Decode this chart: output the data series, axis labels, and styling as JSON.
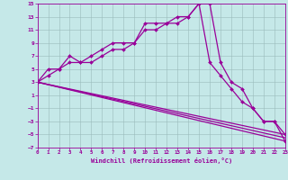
{
  "xlabel": "Windchill (Refroidissement éolien,°C)",
  "xlim": [
    0,
    23
  ],
  "ylim": [
    -7,
    15
  ],
  "xticks": [
    0,
    1,
    2,
    3,
    4,
    5,
    6,
    7,
    8,
    9,
    10,
    11,
    12,
    13,
    14,
    15,
    16,
    17,
    18,
    19,
    20,
    21,
    22,
    23
  ],
  "yticks": [
    -7,
    -5,
    -3,
    -1,
    1,
    3,
    5,
    7,
    9,
    11,
    13,
    15
  ],
  "background_color": "#c5e8e8",
  "line_color": "#990099",
  "grid_color": "#99bbbb",
  "curve1_x": [
    0,
    1,
    2,
    3,
    4,
    5,
    6,
    7,
    8,
    9,
    10,
    11,
    12,
    13,
    14,
    15,
    16,
    17,
    18,
    19,
    20,
    21,
    22,
    23
  ],
  "curve1_y": [
    3,
    5,
    5,
    7,
    6,
    7,
    8,
    9,
    9,
    9,
    12,
    12,
    12,
    12,
    13,
    15,
    15,
    6,
    3,
    2,
    -1,
    -3,
    -3,
    -6
  ],
  "curve2_x": [
    0,
    1,
    2,
    3,
    4,
    5,
    6,
    7,
    8,
    9,
    10,
    11,
    12,
    13,
    14,
    15,
    16,
    17,
    18,
    19,
    20,
    21,
    22,
    23
  ],
  "curve2_y": [
    3,
    4,
    5,
    6,
    6,
    6,
    7,
    8,
    8,
    9,
    11,
    11,
    12,
    13,
    13,
    15,
    6,
    4,
    2,
    0,
    -1,
    -3,
    -3,
    -5
  ],
  "line1_x": [
    0,
    23
  ],
  "line1_y": [
    3,
    -6
  ],
  "line2_x": [
    0,
    23
  ],
  "line2_y": [
    3,
    -5.5
  ],
  "line3_x": [
    0,
    23
  ],
  "line3_y": [
    3,
    -5
  ],
  "marker": "D",
  "markersize": 2.0,
  "linewidth": 0.9
}
